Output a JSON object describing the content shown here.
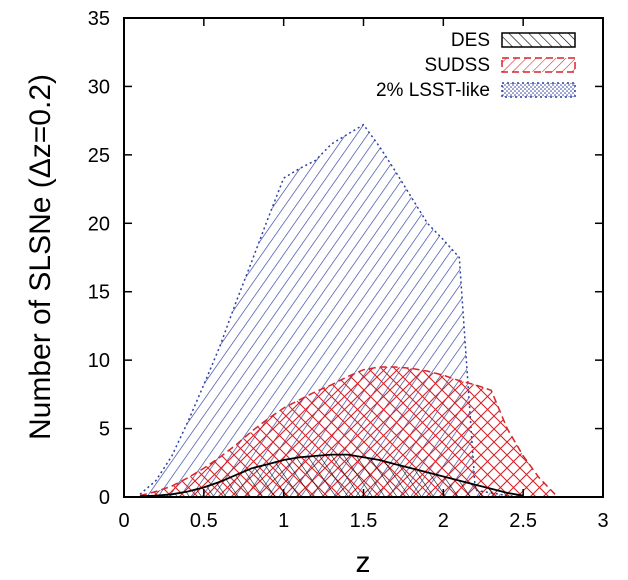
{
  "chart_data": {
    "type": "area",
    "xlabel": "z",
    "ylabel": "Number of SLSNe (Δz=0.2)",
    "xlim": [
      0,
      3
    ],
    "ylim": [
      0,
      35
    ],
    "x_ticks": [
      0,
      0.5,
      1,
      1.5,
      2,
      2.5,
      3
    ],
    "x_tick_labels": [
      "0",
      "0.5",
      "1",
      "1.5",
      "2",
      "2.5",
      "3"
    ],
    "y_ticks": [
      0,
      5,
      10,
      15,
      20,
      25,
      30,
      35
    ],
    "y_tick_labels": [
      "0",
      "5",
      "10",
      "15",
      "20",
      "25",
      "30",
      "35"
    ],
    "legend_position": "top-right",
    "grid": false,
    "series": [
      {
        "name": "2% LSST-like",
        "color": "#2b3fa0",
        "line_style": "dotted",
        "fill": "hatch-diagonal-down",
        "x": [
          0.1,
          0.2,
          0.3,
          0.4,
          0.5,
          0.6,
          0.7,
          0.8,
          0.9,
          1.0,
          1.1,
          1.2,
          1.3,
          1.4,
          1.5,
          1.6,
          1.7,
          1.8,
          1.9,
          2.0,
          2.1,
          2.2,
          2.3,
          2.4,
          2.5
        ],
        "y": [
          0.2,
          1.2,
          3.0,
          5.5,
          8.2,
          11.0,
          14.2,
          17.2,
          20.3,
          23.3,
          24.0,
          24.6,
          25.8,
          26.5,
          27.2,
          25.6,
          23.8,
          21.9,
          20.0,
          18.8,
          17.5,
          0.5,
          0.3,
          0.1,
          0.0
        ]
      },
      {
        "name": "SUDSS",
        "color": "#d8232a",
        "line_style": "dashed",
        "fill": "hatch-crosshatch",
        "x": [
          0.1,
          0.2,
          0.3,
          0.4,
          0.5,
          0.6,
          0.7,
          0.8,
          0.9,
          1.0,
          1.1,
          1.2,
          1.3,
          1.4,
          1.5,
          1.6,
          1.7,
          1.8,
          1.9,
          2.0,
          2.1,
          2.2,
          2.3,
          2.4,
          2.5,
          2.6,
          2.7
        ],
        "y": [
          0.1,
          0.4,
          0.8,
          1.4,
          2.1,
          2.9,
          3.8,
          4.8,
          5.7,
          6.5,
          7.1,
          7.7,
          8.2,
          8.8,
          9.3,
          9.5,
          9.5,
          9.4,
          9.2,
          8.9,
          8.5,
          8.2,
          7.8,
          5.0,
          3.0,
          1.4,
          0.2
        ]
      },
      {
        "name": "DES",
        "color": "#000000",
        "line_style": "solid",
        "fill": "hatch-diagonal-down",
        "x": [
          0.1,
          0.2,
          0.3,
          0.4,
          0.5,
          0.6,
          0.7,
          0.8,
          0.9,
          1.0,
          1.1,
          1.2,
          1.3,
          1.4,
          1.5,
          1.6,
          1.7,
          1.8,
          1.9,
          2.0,
          2.1,
          2.2,
          2.3,
          2.4,
          2.5
        ],
        "y": [
          0.05,
          0.1,
          0.2,
          0.4,
          0.7,
          1.1,
          1.6,
          2.1,
          2.4,
          2.7,
          2.9,
          3.0,
          3.1,
          3.1,
          2.9,
          2.7,
          2.4,
          2.1,
          1.8,
          1.5,
          1.2,
          0.9,
          0.6,
          0.3,
          0.1
        ]
      }
    ]
  }
}
